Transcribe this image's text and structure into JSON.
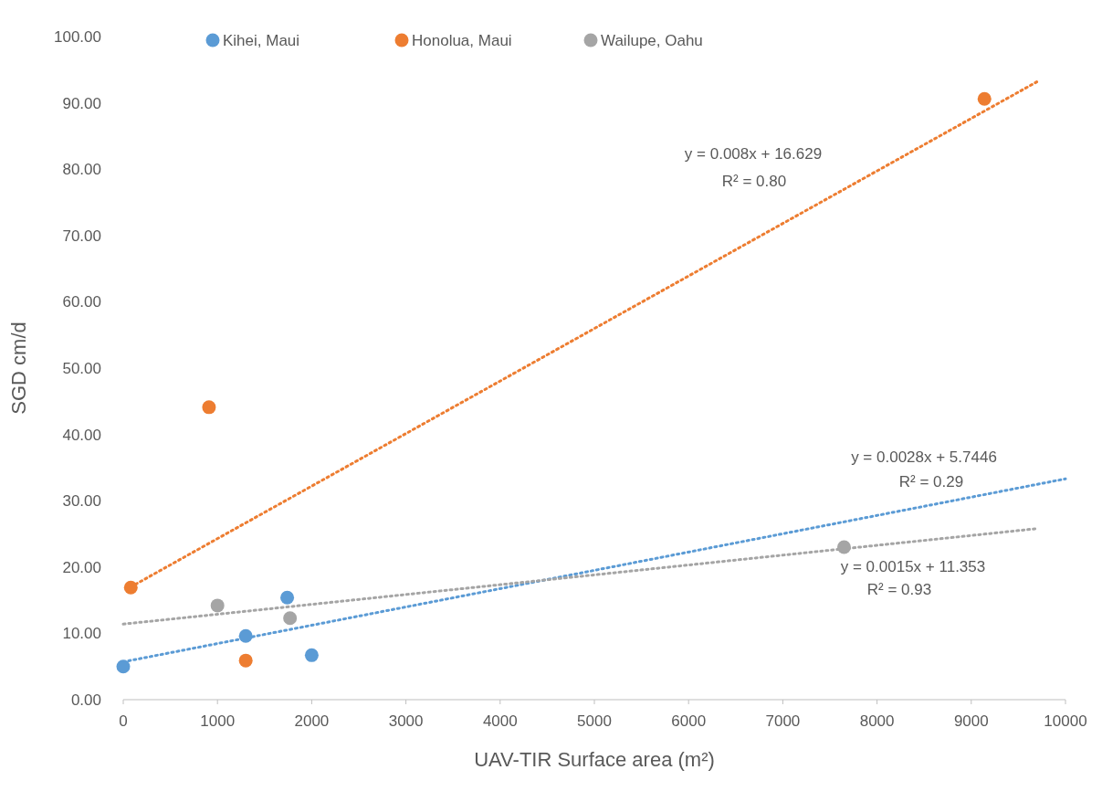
{
  "chart_data": {
    "type": "scatter",
    "xlabel": "UAV-TIR Surface area (m²)",
    "ylabel": "SGD cm/d",
    "xlim": [
      0,
      10000
    ],
    "xticks": [
      0,
      1000,
      2000,
      3000,
      4000,
      5000,
      6000,
      7000,
      8000,
      9000,
      10000
    ],
    "ylim": [
      0,
      100
    ],
    "yticks": [
      {
        "value": 0,
        "label": "0.00"
      },
      {
        "value": 10,
        "label": "10.00"
      },
      {
        "value": 20,
        "label": "20.00"
      },
      {
        "value": 30,
        "label": "30.00"
      },
      {
        "value": 40,
        "label": "40.00"
      },
      {
        "value": 50,
        "label": "50.00"
      },
      {
        "value": 60,
        "label": "60.00"
      },
      {
        "value": 70,
        "label": "70.00"
      },
      {
        "value": 80,
        "label": "80.00"
      },
      {
        "value": 90,
        "label": "90.00"
      },
      {
        "value": 100,
        "label": "100.00"
      }
    ],
    "grid": false,
    "legend": "top",
    "marker": "circle",
    "series": [
      {
        "name": "Kihei, Maui",
        "color": "#5b9bd5",
        "x": [
          0,
          1300,
          1740,
          2000
        ],
        "values": [
          5.0,
          9.6,
          15.4,
          6.7
        ]
      },
      {
        "name": "Honolua, Maui",
        "color": "#ed7d31",
        "x": [
          80,
          910,
          1300,
          9140
        ],
        "values": [
          16.9,
          44.1,
          5.9,
          90.6
        ]
      },
      {
        "name": "Wailupe, Oahu",
        "color": "#a5a5a5",
        "x": [
          1000,
          1770,
          7650
        ],
        "values": [
          14.2,
          12.3,
          23.0
        ]
      },
      {
        "type": "line",
        "color": "#5b9bd5",
        "x": [
          0,
          10000
        ],
        "values": [
          5.7,
          33.3
        ],
        "line_style": "dotted",
        "marker": "none"
      },
      {
        "type": "line",
        "color": "#ed7d31",
        "x": [
          80,
          9700
        ],
        "values": [
          17.0,
          93.2
        ],
        "line_style": "dotted",
        "marker": "none"
      },
      {
        "type": "line",
        "color": "#a5a5a5",
        "x": [
          0,
          9700
        ],
        "values": [
          11.4,
          25.8
        ],
        "line_style": "dotted",
        "marker": "none"
      }
    ],
    "annotations": [
      "y = 0.008x + 16.629",
      "R² = 0.80",
      "y = 0.0028x + 5.7446",
      "R² = 0.29",
      "y = 0.0015x + 11.353",
      "R² = 0.93"
    ]
  }
}
